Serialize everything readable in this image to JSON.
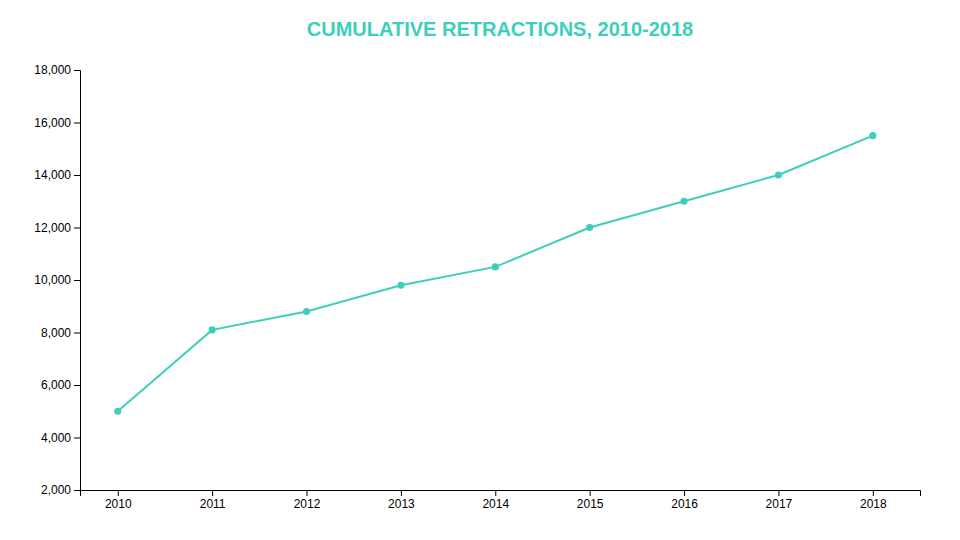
{
  "chart_data": {
    "type": "line",
    "title": "CUMULATIVE RETRACTIONS, 2010-2018",
    "x": [
      2010,
      2011,
      2012,
      2013,
      2014,
      2015,
      2016,
      2017,
      2018
    ],
    "values": [
      5000,
      8100,
      8800,
      9800,
      10500,
      12000,
      13000,
      14000,
      15500
    ],
    "color": "#3ECFBA",
    "marker": "circle",
    "xlim": [
      2009.6,
      2018.5
    ],
    "xticks": [
      2010,
      2011,
      2012,
      2013,
      2014,
      2015,
      2016,
      2017,
      2018
    ],
    "ylim": [
      2000,
      18000
    ],
    "yticks": [
      {
        "value": 2000,
        "label": "2,000"
      },
      {
        "value": 4000,
        "label": "4,000"
      },
      {
        "value": 6000,
        "label": "6,000"
      },
      {
        "value": 8000,
        "label": "8,000"
      },
      {
        "value": 10000,
        "label": "10,000"
      },
      {
        "value": 12000,
        "label": "12,000"
      },
      {
        "value": 14000,
        "label": "14,000"
      },
      {
        "value": 16000,
        "label": "16,000"
      },
      {
        "value": 18000,
        "label": "18,000"
      }
    ],
    "grid": false
  }
}
